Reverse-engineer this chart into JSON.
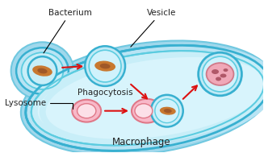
{
  "label_bacterium": "Bacterium",
  "label_vesicle": "Vesicle",
  "label_phagocytosis": "Phagocytosis",
  "label_lysosome": "Lysosome",
  "label_macrophage": "Macrophage",
  "bg_color": "#ffffff",
  "mac_fill_outer": "#a8dff0",
  "mac_fill_inner": "#c0ecf8",
  "mac_border": "#3bb8d8",
  "mac_inner_border": "#5ccce0",
  "cyto_fill": "#ceeef8",
  "arm_fill": "#b0e0f0",
  "vesicle_fill": "#b8e8f4",
  "vesicle_border": "#38b0d0",
  "lyso_fill": "#f8b8c8",
  "lyso_border": "#e07888",
  "lyso_inner": "#fce0e8",
  "bact_fill": "#c87830",
  "bact_dark": "#a05828",
  "arrow_color": "#dd1010",
  "text_color": "#222222",
  "digest_fill": "#f0a8b8",
  "digest_border": "#d07888",
  "digest_blob": "#b05868"
}
